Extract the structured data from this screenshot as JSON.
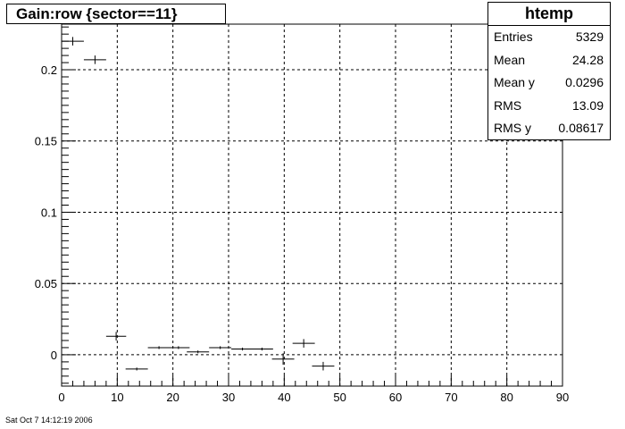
{
  "title": "Gain:row {sector==11}",
  "stats": {
    "name": "htemp",
    "rows": [
      {
        "label": "Entries",
        "value": "5329"
      },
      {
        "label": "Mean",
        "value": "24.28"
      },
      {
        "label": "Mean y",
        "value": "0.0296"
      },
      {
        "label": "RMS",
        "value": "13.09"
      },
      {
        "label": "RMS y",
        "value": "0.08617"
      }
    ]
  },
  "timestamp": "Sat Oct  7 14:12:19 2006",
  "chart_data": {
    "type": "scatter",
    "title": "Gain:row {sector==11}",
    "xlabel": "",
    "ylabel": "",
    "xlim": [
      0,
      90
    ],
    "ylim": [
      -0.022,
      0.232
    ],
    "grid": true,
    "x_ticks": [
      0,
      10,
      20,
      30,
      40,
      50,
      60,
      70,
      80,
      90
    ],
    "y_ticks": [
      0,
      0.05,
      0.1,
      0.15,
      0.2
    ],
    "y_tick_labels": [
      "0",
      "0.05",
      "0.1",
      "0.15",
      "0.2"
    ],
    "points": [
      {
        "x": 2.0,
        "y": 0.22,
        "xerr": 2.0,
        "yerr": 0.003
      },
      {
        "x": 6.0,
        "y": 0.207,
        "xerr": 2.0,
        "yerr": 0.003
      },
      {
        "x": 9.8,
        "y": 0.013,
        "xerr": 1.8,
        "yerr": 0.003
      },
      {
        "x": 13.5,
        "y": -0.01,
        "xerr": 2.0,
        "yerr": 0.001
      },
      {
        "x": 17.5,
        "y": 0.005,
        "xerr": 2.0,
        "yerr": 0.001
      },
      {
        "x": 21.0,
        "y": 0.005,
        "xerr": 2.0,
        "yerr": 0.001
      },
      {
        "x": 24.5,
        "y": 0.002,
        "xerr": 2.0,
        "yerr": 0.001
      },
      {
        "x": 28.5,
        "y": 0.005,
        "xerr": 2.0,
        "yerr": 0.001
      },
      {
        "x": 32.5,
        "y": 0.004,
        "xerr": 2.0,
        "yerr": 0.001
      },
      {
        "x": 36.0,
        "y": 0.004,
        "xerr": 2.0,
        "yerr": 0.001
      },
      {
        "x": 39.8,
        "y": -0.003,
        "xerr": 2.0,
        "yerr": 0.004
      },
      {
        "x": 43.5,
        "y": 0.008,
        "xerr": 2.0,
        "yerr": 0.003
      },
      {
        "x": 47.0,
        "y": -0.008,
        "xerr": 2.0,
        "yerr": 0.003
      }
    ]
  }
}
